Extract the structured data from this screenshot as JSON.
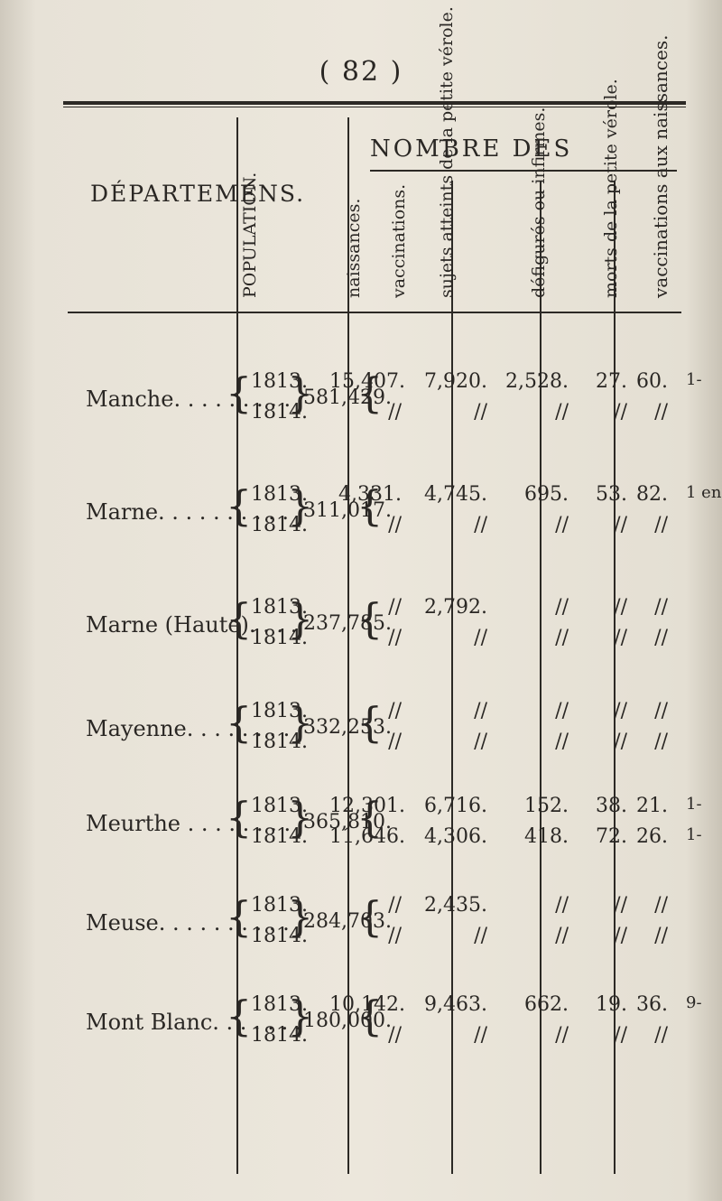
{
  "page": {
    "number": "( 82 )"
  },
  "header": {
    "group_title": "NOMBRE DES",
    "departments": "DÉPARTEMENS.",
    "columns": [
      "POPULATION.",
      "naissances.",
      "vaccinations.",
      "sujets atteints de la petite vérole.",
      "défigurés ou infirmes.",
      "morts de la petite vérole.",
      "vaccinations aux naissances."
    ]
  },
  "rows": [
    {
      "department": "Manche. . . . . . . . .",
      "years": [
        "1813.",
        "1814."
      ],
      "population": "581,429.",
      "cells": [
        [
          "15,407.",
          "7,920.",
          "2,528.",
          "27.",
          "60.",
          "1-"
        ],
        [
          "//",
          "//",
          "//",
          "//",
          "//",
          ""
        ]
      ]
    },
    {
      "department": "Marne. . . . . . . . . .",
      "years": [
        "1813.",
        "1814."
      ],
      "population": "311,017.",
      "cells": [
        [
          "4,331.",
          "4,745.",
          "695.",
          "53.",
          "82.",
          "1 en"
        ],
        [
          "//",
          "//",
          "//",
          "//",
          "//",
          ""
        ]
      ]
    },
    {
      "department": "Marne (Haute). . . .",
      "years": [
        "1813.",
        "1814."
      ],
      "population": "237,785.",
      "cells": [
        [
          "//",
          "2,792.",
          "//",
          "//",
          "//",
          ""
        ],
        [
          "//",
          "//",
          "//",
          "//",
          "//",
          ""
        ]
      ]
    },
    {
      "department": "Mayenne. . . . . . . .",
      "years": [
        "1813.",
        "1814."
      ],
      "population": "332,253.",
      "cells": [
        [
          "//",
          "//",
          "//",
          "//",
          "//",
          ""
        ],
        [
          "//",
          "//",
          "//",
          "//",
          "//",
          ""
        ]
      ]
    },
    {
      "department": "Meurthe . . . . . . . .",
      "years": [
        "1813.",
        "1814."
      ],
      "population": "365,810.",
      "cells": [
        [
          "12,301.",
          "6,716.",
          "152.",
          "38.",
          "21.",
          "1-"
        ],
        [
          "11,646.",
          "4,306.",
          "418.",
          "72.",
          "26.",
          "1-"
        ]
      ]
    },
    {
      "department": "Meuse. . . . . . . . . .",
      "years": [
        "1813.",
        "1814."
      ],
      "population": "284,703.",
      "cells": [
        [
          "//",
          "2,435.",
          "//",
          "//",
          "//",
          ""
        ],
        [
          "//",
          "//",
          "//",
          "//",
          "//",
          ""
        ]
      ]
    },
    {
      "department": "Mont Blanc. . . . . . .",
      "years": [
        "1813.",
        "1814."
      ],
      "population": "180,000.",
      "cells": [
        [
          "10,142.",
          "9,463.",
          "662.",
          "19.",
          "36.",
          "9-"
        ],
        [
          "//",
          "//",
          "//",
          "//",
          "//",
          ""
        ]
      ]
    }
  ]
}
